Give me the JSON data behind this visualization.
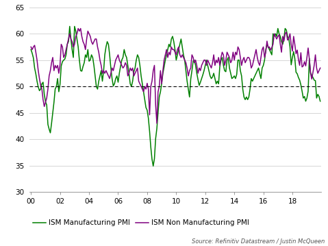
{
  "source_text": "Source: Refinitiv Datastream / Justin McQueen",
  "ylim": [
    30,
    65
  ],
  "yticks": [
    30,
    35,
    40,
    45,
    50,
    55,
    60,
    65
  ],
  "dashed_line_y": 50,
  "line_mfg_color": "#008000",
  "line_nonmfg_color": "#800080",
  "line_width": 1.1,
  "legend_mfg": "ISM Manufacturing PMI",
  "legend_nonmfg": "ISM Non Manufacturing PMI",
  "xtick_years": [
    2000,
    2002,
    2004,
    2006,
    2008,
    2010,
    2012,
    2014,
    2016,
    2018
  ],
  "xtick_labels": [
    "00",
    "02",
    "04",
    "06",
    "08",
    "10",
    "12",
    "14",
    "16",
    "18"
  ],
  "xlim_start": 1999.9,
  "xlim_end": 2020.0,
  "mfg_data": [
    57.0,
    56.3,
    55.4,
    53.5,
    52.4,
    51.0,
    49.9,
    49.2,
    49.5,
    50.5,
    50.8,
    48.5,
    47.1,
    46.5,
    42.8,
    41.9,
    41.2,
    43.0,
    45.0,
    47.0,
    49.5,
    50.0,
    51.5,
    49.0,
    50.4,
    53.9,
    54.7,
    55.0,
    55.2,
    56.0,
    58.0,
    58.5,
    61.4,
    59.0,
    57.0,
    55.5,
    61.4,
    60.5,
    59.0,
    57.5,
    55.0,
    53.0,
    52.9,
    53.8,
    54.5,
    56.0,
    55.5,
    57.0,
    54.8,
    55.0,
    56.0,
    55.5,
    54.0,
    52.0,
    50.0,
    49.5,
    51.0,
    52.0,
    53.0,
    51.0,
    52.9,
    56.0,
    57.5,
    58.5,
    58.0,
    56.0,
    53.5,
    51.5,
    50.1,
    50.5,
    51.5,
    52.0,
    50.8,
    52.5,
    53.8,
    55.0,
    55.5,
    57.0,
    56.0,
    55.5,
    54.0,
    52.4,
    50.5,
    50.0,
    51.0,
    52.8,
    53.5,
    55.0,
    56.0,
    55.5,
    54.0,
    52.0,
    50.5,
    49.0,
    47.5,
    46.0,
    45.5,
    44.0,
    41.5,
    38.5,
    36.2,
    34.9,
    36.3,
    40.1,
    42.0,
    45.0,
    48.0,
    49.0,
    50.6,
    52.5,
    53.7,
    55.0,
    56.0,
    57.0,
    58.0,
    57.5,
    59.0,
    59.5,
    58.5,
    57.0,
    55.0,
    56.0,
    57.0,
    58.0,
    59.0,
    57.5,
    56.0,
    55.0,
    53.0,
    51.0,
    49.5,
    48.0,
    51.4,
    53.0,
    54.8,
    55.0,
    54.0,
    52.5,
    51.3,
    50.2,
    50.8,
    51.5,
    52.2,
    53.0,
    54.0,
    55.0,
    54.0,
    53.0,
    52.0,
    51.5,
    51.8,
    52.5,
    51.5,
    50.5,
    51.0,
    50.5,
    53.7,
    55.0,
    55.5,
    54.0,
    53.0,
    52.8,
    55.0,
    55.5,
    53.5,
    52.5,
    51.5,
    51.7,
    52.0,
    51.5,
    52.3,
    55.0,
    55.0,
    53.0,
    52.0,
    49.5,
    48.0,
    47.5,
    48.0,
    47.5,
    48.0,
    49.5,
    51.5,
    51.0,
    51.5,
    52.0,
    52.5,
    53.0,
    53.5,
    52.5,
    51.5,
    53.5,
    54.0,
    55.0,
    57.0,
    58.0,
    57.5,
    57.0,
    56.5,
    56.0,
    60.0,
    59.5,
    60.0,
    59.5,
    61.0,
    60.0,
    59.5,
    58.5,
    58.0,
    59.0,
    61.0,
    60.7,
    59.5,
    59.1,
    57.5,
    54.1,
    55.5,
    56.6,
    55.3,
    52.7,
    52.4,
    51.7,
    51.2,
    50.3,
    49.1,
    47.8,
    48.1,
    47.2,
    47.8,
    49.1,
    55.3,
    52.6,
    52.1,
    51.7,
    51.2,
    51.1,
    47.8,
    48.5,
    48.1,
    47.2
  ],
  "nonmfg_data": [
    57.5,
    57.0,
    57.5,
    57.8,
    56.5,
    55.0,
    53.0,
    51.5,
    50.2,
    49.5,
    47.5,
    46.2,
    47.0,
    47.8,
    49.5,
    52.0,
    53.0,
    54.5,
    55.5,
    53.0,
    54.0,
    53.5,
    54.0,
    52.5,
    54.1,
    58.0,
    57.5,
    55.5,
    56.0,
    57.0,
    58.0,
    59.0,
    60.0,
    59.0,
    58.5,
    57.5,
    58.0,
    59.5,
    60.0,
    61.0,
    60.5,
    61.0,
    59.5,
    58.5,
    58.0,
    57.0,
    59.0,
    60.5,
    60.0,
    59.5,
    58.5,
    58.0,
    58.5,
    59.0,
    59.0,
    57.5,
    56.5,
    55.0,
    54.0,
    52.5,
    53.0,
    52.5,
    53.0,
    52.5,
    52.0,
    51.5,
    52.5,
    53.5,
    53.0,
    54.0,
    55.0,
    55.5,
    56.0,
    55.0,
    54.5,
    54.0,
    53.5,
    53.8,
    54.5,
    54.0,
    52.0,
    52.5,
    53.5,
    53.0,
    53.5,
    52.0,
    52.5,
    53.0,
    53.5,
    51.0,
    50.5,
    50.0,
    49.5,
    49.0,
    50.0,
    49.5,
    50.6,
    49.5,
    44.6,
    50.0,
    51.0,
    53.0,
    54.0,
    46.5,
    43.0,
    49.0,
    50.0,
    53.0,
    50.5,
    53.0,
    55.0,
    56.0,
    57.0,
    55.5,
    56.5,
    56.0,
    57.5,
    57.0,
    57.0,
    56.5,
    56.0,
    57.0,
    57.5,
    56.0,
    55.5,
    56.0,
    55.5,
    55.0,
    54.5,
    53.5,
    52.0,
    53.0,
    53.5,
    56.0,
    55.5,
    54.5,
    55.0,
    54.0,
    52.5,
    53.5,
    53.0,
    54.0,
    54.5,
    55.0,
    55.0,
    54.0,
    55.0,
    54.5,
    54.0,
    53.5,
    54.5,
    56.0,
    54.0,
    55.0,
    54.5,
    55.5,
    54.0,
    55.5,
    56.5,
    56.0,
    54.0,
    55.0,
    56.5,
    56.0,
    55.5,
    54.5,
    55.0,
    56.5,
    55.0,
    56.5,
    56.0,
    57.5,
    57.0,
    55.5,
    54.0,
    55.0,
    55.5,
    54.5,
    55.0,
    55.5,
    55.5,
    55.0,
    53.5,
    54.0,
    55.0,
    56.0,
    57.0,
    55.5,
    54.5,
    54.0,
    55.5,
    57.0,
    57.5,
    55.5,
    56.5,
    58.6,
    57.4,
    57.5,
    56.9,
    57.4,
    58.0,
    60.0,
    59.5,
    59.0,
    59.5,
    59.8,
    58.0,
    56.5,
    59.5,
    58.6,
    60.0,
    60.3,
    58.8,
    59.1,
    60.0,
    58.0,
    56.7,
    59.5,
    58.0,
    56.2,
    56.9,
    55.1,
    54.0,
    56.4,
    53.7,
    53.9,
    54.7,
    53.9,
    55.5,
    57.3,
    55.2,
    52.5,
    51.4,
    52.7,
    54.0,
    56.0,
    53.5,
    52.5,
    53.0,
    53.5
  ]
}
